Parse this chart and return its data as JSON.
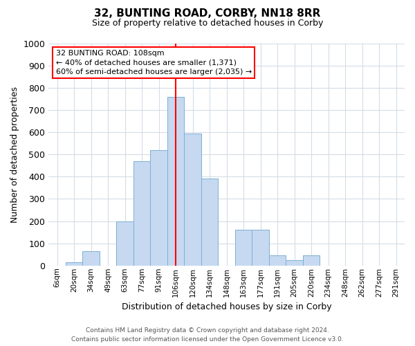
{
  "title": "32, BUNTING ROAD, CORBY, NN18 8RR",
  "subtitle": "Size of property relative to detached houses in Corby",
  "xlabel": "Distribution of detached houses by size in Corby",
  "ylabel": "Number of detached properties",
  "bar_labels": [
    "6sqm",
    "20sqm",
    "34sqm",
    "49sqm",
    "63sqm",
    "77sqm",
    "91sqm",
    "106sqm",
    "120sqm",
    "134sqm",
    "148sqm",
    "163sqm",
    "177sqm",
    "191sqm",
    "205sqm",
    "220sqm",
    "234sqm",
    "248sqm",
    "262sqm",
    "277sqm",
    "291sqm"
  ],
  "bar_values": [
    0,
    15,
    65,
    0,
    200,
    470,
    520,
    760,
    595,
    390,
    0,
    160,
    160,
    45,
    25,
    45,
    0,
    0,
    0,
    0,
    0
  ],
  "bar_color": "#c6d9f0",
  "bar_edgecolor": "#7bafd4",
  "vline_x_index": 7,
  "vline_color": "red",
  "ylim": [
    0,
    1000
  ],
  "yticks": [
    0,
    100,
    200,
    300,
    400,
    500,
    600,
    700,
    800,
    900,
    1000
  ],
  "annotation_line1": "32 BUNTING ROAD: 108sqm",
  "annotation_line2": "← 40% of detached houses are smaller (1,371)",
  "annotation_line3": "60% of semi-detached houses are larger (2,035) →",
  "annotation_box_color": "red",
  "footer_line1": "Contains HM Land Registry data © Crown copyright and database right 2024.",
  "footer_line2": "Contains public sector information licensed under the Open Government Licence v3.0.",
  "background_color": "#ffffff",
  "grid_color": "#d4dce8",
  "bar_width": 1.0
}
